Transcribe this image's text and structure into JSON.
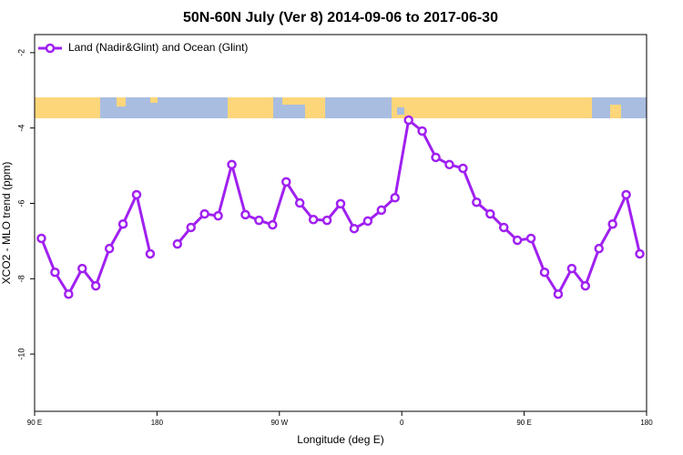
{
  "chart_data": {
    "type": "line",
    "title": "50N-60N July (Ver 8)   2014-09-06 to 2017-06-30",
    "x_label": "Longitude (deg E)",
    "y_label": "XCO2 - MLO trend (ppm)",
    "x": [
      95,
      105,
      115,
      125,
      135,
      145,
      155,
      165,
      175,
      185,
      195,
      205,
      215,
      225,
      235,
      245,
      255,
      265,
      275,
      285,
      295,
      305,
      315,
      325,
      335,
      345,
      355,
      365,
      375,
      385,
      395,
      405,
      415,
      425,
      435,
      445,
      455,
      465,
      475,
      485,
      495,
      505,
      515,
      525,
      535
    ],
    "series": [
      {
        "name": "Land (Nadir&Glint) and Ocean (Glint)",
        "color": "#a020f0",
        "values": [
          -6.93,
          -7.83,
          -8.41,
          -7.73,
          -8.19,
          -7.2,
          -6.55,
          -5.77,
          -7.34,
          null,
          -7.08,
          -6.64,
          -6.28,
          -6.33,
          -4.97,
          -6.3,
          -6.45,
          -6.57,
          -5.43,
          -5.99,
          -6.43,
          -6.45,
          -6.01,
          -6.67,
          -6.47,
          -6.18,
          -5.85,
          -3.79,
          -4.08,
          -4.78,
          -4.97,
          -5.07,
          -5.97,
          -6.28,
          -6.64,
          -6.98,
          -6.93,
          -7.83,
          -8.41,
          -7.73,
          -8.19,
          -7.2,
          -6.55,
          -5.77,
          -7.34
        ]
      }
    ],
    "xlim": [
      90,
      540
    ],
    "ylim": [
      -11.52,
      -1.52
    ],
    "xticks": [
      {
        "value": 90,
        "label": "90 E"
      },
      180,
      {
        "value": 270,
        "label": "90 W"
      },
      {
        "value": 360,
        "label": "0"
      },
      {
        "value": 450,
        "label": "90 E"
      },
      {
        "value": 540,
        "label": "180"
      }
    ],
    "yticks": [
      -2,
      -4,
      -6,
      -8,
      -10
    ],
    "legend": "top-left",
    "grid": false
  }
}
